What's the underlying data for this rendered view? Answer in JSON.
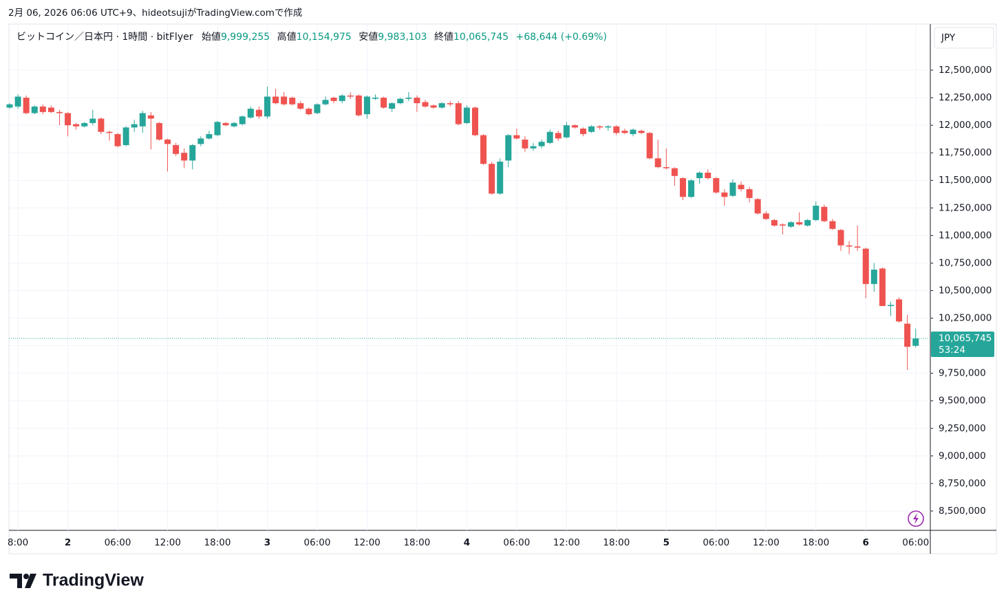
{
  "header": "2月 06, 2026 06:06 UTC+9、hideotsujiがTradingView.comで作成",
  "logo": "TradingView",
  "chart_data": {
    "type": "candlestick",
    "title": "ビットコイン／日本円 · 1時間 · bitFlyer",
    "legend": {
      "open_label": "始値",
      "open": "9,999,255",
      "high_label": "高値",
      "high": "10,154,975",
      "low_label": "安値",
      "low": "9,983,103",
      "close_label": "終値",
      "close": "10,065,745",
      "change": "+68,644 (+0.69%)"
    },
    "currency": "JPY",
    "price_label": "10,065,745",
    "countdown": "53:24",
    "up_color": "#26a69a",
    "down_color": "#ef5350",
    "grid": true,
    "ylim": [
      8325000,
      12918000
    ],
    "yticks": [
      {
        "value": 8500000,
        "label": "8,500,000"
      },
      {
        "value": 8750000,
        "label": "8,750,000"
      },
      {
        "value": 9000000,
        "label": "9,000,000"
      },
      {
        "value": 9250000,
        "label": "9,250,000"
      },
      {
        "value": 9500000,
        "label": "9,500,000"
      },
      {
        "value": 9750000,
        "label": "9,750,000"
      },
      {
        "value": 10000000,
        "label": "10,000,000"
      },
      {
        "value": 10250000,
        "label": "10,250,000"
      },
      {
        "value": 10500000,
        "label": "10,500,000"
      },
      {
        "value": 10750000,
        "label": "10,750,000"
      },
      {
        "value": 11000000,
        "label": "11,000,000"
      },
      {
        "value": 11250000,
        "label": "11,250,000"
      },
      {
        "value": 11500000,
        "label": "11,500,000"
      },
      {
        "value": 11750000,
        "label": "11,750,000"
      },
      {
        "value": 12000000,
        "label": "12,000,000"
      },
      {
        "value": 12250000,
        "label": "12,250,000"
      },
      {
        "value": 12500000,
        "label": "12,500,000"
      }
    ],
    "categories": [
      null,
      "8:00",
      null,
      null,
      null,
      null,
      null,
      "2",
      null,
      null,
      null,
      null,
      null,
      "06:00",
      null,
      null,
      null,
      null,
      null,
      "12:00",
      null,
      null,
      null,
      null,
      null,
      "18:00",
      null,
      null,
      null,
      null,
      null,
      "3",
      null,
      null,
      null,
      null,
      null,
      "06:00",
      null,
      null,
      null,
      null,
      null,
      "12:00",
      null,
      null,
      null,
      null,
      null,
      "18:00",
      null,
      null,
      null,
      null,
      null,
      "4",
      null,
      null,
      null,
      null,
      null,
      "06:00",
      null,
      null,
      null,
      null,
      null,
      "12:00",
      null,
      null,
      null,
      null,
      null,
      "18:00",
      null,
      null,
      null,
      null,
      null,
      "5",
      null,
      null,
      null,
      null,
      null,
      "06:00",
      null,
      null,
      null,
      null,
      null,
      "12:00",
      null,
      null,
      null,
      null,
      null,
      "18:00",
      null,
      null,
      null,
      null,
      null,
      "6",
      null,
      null,
      null,
      null,
      null,
      "06:00"
    ],
    "open": [
      12160000,
      12170000,
      12250000,
      12110000,
      12170000,
      12160000,
      12120000,
      12110000,
      12010000,
      11990000,
      12020000,
      12060000,
      11940000,
      11920000,
      11820000,
      11980000,
      11990000,
      12090000,
      12020000,
      11870000,
      11820000,
      11750000,
      11680000,
      11830000,
      11880000,
      11910000,
      12020000,
      11990000,
      12010000,
      12070000,
      12140000,
      12080000,
      12260000,
      12260000,
      12250000,
      12200000,
      12150000,
      12110000,
      12190000,
      12250000,
      12220000,
      12270000,
      12270000,
      12100000,
      12240000,
      12250000,
      12150000,
      12200000,
      12240000,
      12250000,
      12210000,
      12180000,
      12160000,
      12200000,
      12200000,
      12020000,
      12160000,
      11910000,
      11650000,
      11380000,
      11680000,
      11910000,
      11870000,
      11790000,
      11810000,
      11840000,
      11930000,
      11890000,
      12000000,
      11970000,
      11940000,
      11990000,
      11980000,
      11990000,
      11950000,
      11920000,
      11950000,
      11930000,
      11700000,
      11620000,
      11610000,
      11520000,
      11350000,
      11520000,
      11570000,
      11520000,
      11390000,
      11360000,
      11460000,
      11420000,
      11330000,
      11200000,
      11140000,
      11100000,
      11080000,
      11120000,
      11090000,
      11140000,
      11260000,
      11130000,
      11050000,
      10910000,
      10900000,
      10880000,
      10560000,
      10700000,
      10360000,
      10420000,
      10200000,
      9999255
    ],
    "high": [
      12200000,
      12280000,
      12270000,
      12180000,
      12190000,
      12180000,
      12140000,
      12120000,
      12020000,
      12030000,
      12140000,
      12070000,
      11950000,
      11930000,
      11990000,
      12050000,
      12130000,
      12120000,
      12030000,
      11880000,
      11840000,
      11790000,
      11830000,
      11900000,
      11950000,
      12040000,
      12030000,
      12030000,
      12090000,
      12170000,
      12170000,
      12350000,
      12330000,
      12300000,
      12260000,
      12220000,
      12160000,
      12200000,
      12260000,
      12260000,
      12280000,
      12300000,
      12280000,
      12270000,
      12280000,
      12260000,
      12210000,
      12250000,
      12300000,
      12270000,
      12230000,
      12190000,
      12210000,
      12220000,
      12220000,
      12180000,
      12170000,
      11920000,
      11670000,
      11700000,
      11920000,
      11970000,
      11900000,
      11840000,
      11870000,
      11960000,
      11950000,
      12030000,
      12010000,
      11980000,
      12000000,
      12000000,
      12000000,
      12000000,
      11970000,
      11970000,
      11960000,
      11940000,
      11870000,
      11790000,
      11620000,
      11530000,
      11510000,
      11580000,
      11600000,
      11530000,
      11420000,
      11510000,
      11490000,
      11440000,
      11340000,
      11220000,
      11150000,
      11110000,
      11130000,
      11210000,
      11150000,
      11310000,
      11280000,
      11150000,
      11060000,
      10950000,
      11090000,
      10890000,
      10750000,
      10710000,
      10400000,
      10440000,
      10280000,
      10154975
    ],
    "low": [
      12150000,
      12150000,
      12100000,
      12100000,
      12100000,
      12110000,
      12000000,
      11900000,
      11960000,
      11980000,
      12000000,
      11920000,
      11860000,
      11800000,
      11810000,
      11940000,
      11930000,
      11780000,
      11860000,
      11580000,
      11720000,
      11610000,
      11600000,
      11810000,
      11870000,
      11900000,
      11990000,
      11980000,
      12000000,
      12060000,
      12060000,
      12060000,
      12190000,
      12180000,
      12180000,
      12140000,
      12090000,
      12100000,
      12180000,
      12200000,
      12200000,
      12240000,
      12080000,
      12060000,
      12230000,
      12150000,
      12120000,
      12190000,
      12220000,
      12120000,
      12160000,
      12150000,
      12150000,
      12170000,
      12000000,
      12010000,
      11900000,
      11640000,
      11370000,
      11370000,
      11620000,
      11870000,
      11760000,
      11770000,
      11790000,
      11830000,
      11860000,
      11880000,
      11970000,
      11900000,
      11930000,
      11960000,
      11950000,
      11910000,
      11920000,
      11900000,
      11920000,
      11690000,
      11610000,
      11600000,
      11450000,
      11320000,
      11340000,
      11470000,
      11510000,
      11380000,
      11270000,
      11350000,
      11400000,
      11300000,
      11190000,
      11140000,
      11080000,
      11010000,
      11070000,
      11090000,
      11080000,
      11130000,
      11120000,
      11050000,
      10860000,
      10830000,
      10860000,
      10430000,
      10490000,
      10360000,
      10270000,
      10210000,
      9780000,
      9983103
    ],
    "close": [
      12190000,
      12260000,
      12110000,
      12170000,
      12120000,
      12120000,
      12110000,
      12000000,
      11990000,
      12020000,
      12060000,
      11940000,
      11930000,
      11810000,
      11980000,
      12010000,
      12110000,
      12060000,
      11870000,
      11830000,
      11740000,
      11680000,
      11820000,
      11880000,
      11920000,
      12030000,
      12000000,
      12020000,
      12080000,
      12150000,
      12080000,
      12260000,
      12200000,
      12190000,
      12190000,
      12150000,
      12100000,
      12190000,
      12230000,
      12220000,
      12270000,
      12260000,
      12090000,
      12260000,
      12250000,
      12160000,
      12200000,
      12240000,
      12250000,
      12200000,
      12170000,
      12160000,
      12200000,
      12190000,
      12010000,
      12160000,
      11910000,
      11650000,
      11380000,
      11670000,
      11910000,
      11880000,
      11790000,
      11810000,
      11850000,
      11940000,
      11880000,
      12000000,
      11980000,
      11920000,
      11990000,
      11980000,
      11990000,
      11930000,
      11930000,
      11960000,
      11930000,
      11700000,
      11620000,
      11610000,
      11540000,
      11350000,
      11500000,
      11570000,
      11520000,
      11390000,
      11350000,
      11480000,
      11420000,
      11340000,
      11200000,
      11150000,
      11090000,
      11090000,
      11120000,
      11100000,
      11140000,
      11270000,
      11130000,
      11060000,
      10910000,
      10900000,
      10890000,
      10560000,
      10690000,
      10360000,
      10370000,
      10220000,
      9990000,
      10065745
    ]
  }
}
